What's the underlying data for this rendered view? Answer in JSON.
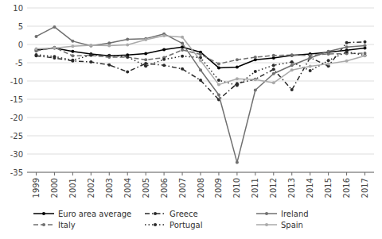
{
  "chart_data": {
    "type": "line",
    "x": [
      1999,
      2000,
      2001,
      2002,
      2003,
      2004,
      2005,
      2006,
      2007,
      2008,
      2009,
      2010,
      2011,
      2012,
      2013,
      2014,
      2015,
      2016,
      2017
    ],
    "series": [
      {
        "name": "Euro area average",
        "color": "#000000",
        "marker": "circle",
        "line_style": "solid",
        "values": [
          -1.5,
          -1.0,
          -1.9,
          -2.6,
          -3.1,
          -2.9,
          -2.5,
          -1.4,
          -0.7,
          -2.1,
          -6.4,
          -6.2,
          -4.2,
          -3.7,
          -3.0,
          -2.6,
          -2.1,
          -1.6,
          -1.0
        ]
      },
      {
        "name": "Greece",
        "color": "#2a2a2a",
        "marker": "circle",
        "line_style": "dashdot",
        "values": [
          -3.1,
          -3.7,
          -4.5,
          -4.8,
          -5.6,
          -7.5,
          -5.2,
          -5.7,
          -6.7,
          -9.8,
          -15.1,
          -10.7,
          -9.5,
          -6.8,
          -12.4,
          -3.6,
          -5.9,
          0.5,
          0.7
        ]
      },
      {
        "name": "Ireland",
        "color": "#707070",
        "marker": "circle",
        "line_style": "solid",
        "values": [
          2.2,
          4.8,
          0.9,
          -0.4,
          0.4,
          1.4,
          1.6,
          2.9,
          0.3,
          -7.0,
          -13.8,
          -32.3,
          -12.5,
          -8.0,
          -5.7,
          -3.7,
          -1.9,
          -0.7,
          -0.3
        ]
      },
      {
        "name": "Italy",
        "color": "#707070",
        "marker": "circle",
        "line_style": "dashed",
        "values": [
          -1.8,
          -0.8,
          -3.1,
          -3.0,
          -3.5,
          -3.5,
          -4.2,
          -3.6,
          -1.5,
          -2.7,
          -5.3,
          -4.2,
          -3.5,
          -3.0,
          -2.9,
          -3.0,
          -2.6,
          -2.5,
          -2.4
        ]
      },
      {
        "name": "Portugal",
        "color": "#2a2a2a",
        "marker": "circle",
        "line_style": "dotted",
        "values": [
          -2.8,
          -3.3,
          -4.3,
          -2.9,
          -3.0,
          -3.4,
          -5.9,
          -4.1,
          -3.2,
          -3.6,
          -9.8,
          -11.2,
          -7.4,
          -5.7,
          -4.8,
          -7.2,
          -4.4,
          -2.0,
          -3.0
        ]
      },
      {
        "name": "Spain",
        "color": "#aaaaaa",
        "marker": "circle",
        "line_style": "solid",
        "values": [
          -1.2,
          -1.0,
          -0.5,
          -0.2,
          -0.3,
          -0.1,
          1.3,
          2.4,
          2.0,
          -4.4,
          -11.0,
          -9.4,
          -9.6,
          -10.5,
          -7.0,
          -6.0,
          -5.3,
          -4.5,
          -3.1
        ]
      }
    ],
    "xlim": [
      1998.5,
      2017.5
    ],
    "xticks": [
      1999,
      2000,
      2001,
      2002,
      2003,
      2004,
      2005,
      2006,
      2007,
      2008,
      2009,
      2010,
      2011,
      2012,
      2013,
      2014,
      2015,
      2016,
      2017
    ],
    "ylim": [
      -35,
      10
    ],
    "yticks": [
      10,
      5,
      0,
      -5,
      -10,
      -15,
      -20,
      -25,
      -30,
      -35
    ],
    "grid": true,
    "legend": "bottom"
  }
}
